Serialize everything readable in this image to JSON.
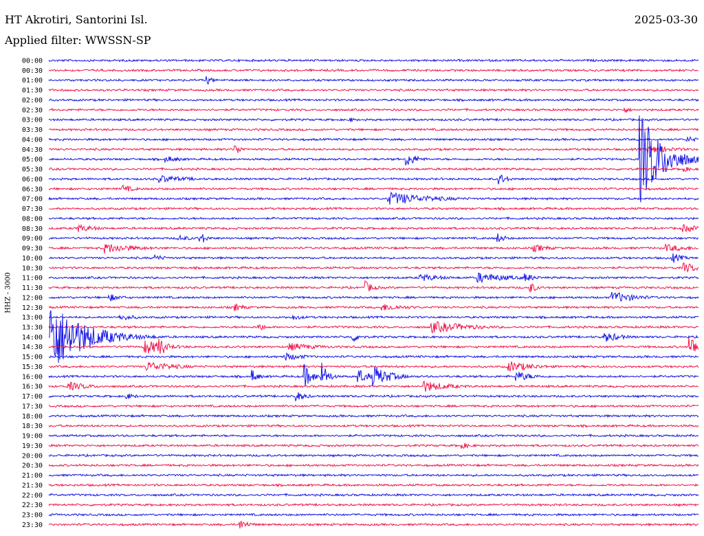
{
  "station": "HT Akrotiri, Santorini Isl.",
  "date": "2025-03-30",
  "filter_label": "Applied filter: WWSSN-SP",
  "channel_label": "HHZ - 3000",
  "colors": {
    "blue": "#1414e6",
    "red": "#f0144b",
    "text": "#000000"
  },
  "chart_data": {
    "type": "line",
    "title": "HT Akrotiri, Santorini Isl.",
    "subtitle": "Applied filter: WWSSN-SP",
    "ylabel": "HHZ - 3000",
    "tick_labels": [
      "00:00",
      "00:30",
      "01:00",
      "01:30",
      "02:00",
      "02:30",
      "03:00",
      "03:30",
      "04:00",
      "04:30",
      "05:00",
      "05:30",
      "06:00",
      "06:30",
      "07:00",
      "07:30",
      "08:00",
      "08:30",
      "09:00",
      "09:30",
      "10:00",
      "10:30",
      "11:00",
      "11:30",
      "12:00",
      "12:30",
      "13:00",
      "13:30",
      "14:00",
      "14:30",
      "15:00",
      "15:30",
      "16:00",
      "16:30",
      "17:00",
      "17:30",
      "18:00",
      "18:30",
      "19:00",
      "19:30",
      "20:00",
      "20:30",
      "21:00",
      "21:30",
      "22:00",
      "22:30",
      "23:00",
      "23:30"
    ],
    "series_colors": [
      "blue",
      "red"
    ],
    "x_range_minutes": [
      0,
      30
    ],
    "events": [
      {
        "row": 2,
        "t": 7.3,
        "amp": 7,
        "dur": 0.3
      },
      {
        "row": 5,
        "t": 26.6,
        "amp": 5,
        "dur": 0.3
      },
      {
        "row": 6,
        "t": 13.9,
        "amp": 4,
        "dur": 0.3
      },
      {
        "row": 8,
        "t": 29.5,
        "amp": 5,
        "dur": 0.5
      },
      {
        "row": 9,
        "t": 8.6,
        "amp": 9,
        "dur": 0.3
      },
      {
        "row": 9,
        "t": 27.7,
        "amp": 6,
        "dur": 1.4
      },
      {
        "row": 10,
        "t": 5.4,
        "amp": 5,
        "dur": 0.8
      },
      {
        "row": 10,
        "t": 16.5,
        "amp": 12,
        "dur": 0.5
      },
      {
        "row": 10,
        "t": 27.3,
        "amp": 70,
        "dur": 1.0
      },
      {
        "row": 11,
        "t": 29.2,
        "amp": 5,
        "dur": 0.5
      },
      {
        "row": 12,
        "t": 5.1,
        "amp": 6,
        "dur": 1.5
      },
      {
        "row": 12,
        "t": 20.8,
        "amp": 9,
        "dur": 0.4
      },
      {
        "row": 13,
        "t": 3.4,
        "amp": 6,
        "dur": 0.6
      },
      {
        "row": 14,
        "t": 15.7,
        "amp": 10,
        "dur": 2.0
      },
      {
        "row": 17,
        "t": 1.3,
        "amp": 6,
        "dur": 1.0
      },
      {
        "row": 17,
        "t": 29.3,
        "amp": 6,
        "dur": 1.0
      },
      {
        "row": 18,
        "t": 6.0,
        "amp": 5,
        "dur": 0.6
      },
      {
        "row": 18,
        "t": 7.0,
        "amp": 10,
        "dur": 0.3
      },
      {
        "row": 18,
        "t": 20.7,
        "amp": 8,
        "dur": 0.4
      },
      {
        "row": 19,
        "t": 2.6,
        "amp": 8,
        "dur": 1.5
      },
      {
        "row": 19,
        "t": 22.4,
        "amp": 6,
        "dur": 0.8
      },
      {
        "row": 19,
        "t": 28.5,
        "amp": 6,
        "dur": 1.2
      },
      {
        "row": 20,
        "t": 4.9,
        "amp": 5,
        "dur": 0.6
      },
      {
        "row": 20,
        "t": 28.8,
        "amp": 8,
        "dur": 0.5
      },
      {
        "row": 21,
        "t": 29.3,
        "amp": 8,
        "dur": 0.8
      },
      {
        "row": 22,
        "t": 17.1,
        "amp": 6,
        "dur": 1.2
      },
      {
        "row": 22,
        "t": 19.8,
        "amp": 8,
        "dur": 1.5
      },
      {
        "row": 22,
        "t": 22.0,
        "amp": 7,
        "dur": 0.5
      },
      {
        "row": 23,
        "t": 14.6,
        "amp": 10,
        "dur": 0.4
      },
      {
        "row": 23,
        "t": 22.2,
        "amp": 10,
        "dur": 0.3
      },
      {
        "row": 24,
        "t": 2.8,
        "amp": 6,
        "dur": 0.6
      },
      {
        "row": 24,
        "t": 26.0,
        "amp": 9,
        "dur": 1.2
      },
      {
        "row": 25,
        "t": 8.6,
        "amp": 6,
        "dur": 0.5
      },
      {
        "row": 25,
        "t": 15.4,
        "amp": 6,
        "dur": 1.2
      },
      {
        "row": 26,
        "t": 3.3,
        "amp": 5,
        "dur": 0.9
      },
      {
        "row": 26,
        "t": 11.2,
        "amp": 5,
        "dur": 0.6
      },
      {
        "row": 27,
        "t": 17.7,
        "amp": 9,
        "dur": 1.8
      },
      {
        "row": 27,
        "t": 9.7,
        "amp": 7,
        "dur": 0.3
      },
      {
        "row": 28,
        "t": 0.1,
        "amp": 55,
        "dur": 1.5
      },
      {
        "row": 28,
        "t": 14.0,
        "amp": 9,
        "dur": 0.4
      },
      {
        "row": 28,
        "t": 25.7,
        "amp": 8,
        "dur": 0.8
      },
      {
        "row": 29,
        "t": 4.4,
        "amp": 12,
        "dur": 1.0
      },
      {
        "row": 29,
        "t": 5.1,
        "amp": 18,
        "dur": 0.3
      },
      {
        "row": 29,
        "t": 11.1,
        "amp": 6,
        "dur": 1.5
      },
      {
        "row": 29,
        "t": 29.6,
        "amp": 15,
        "dur": 1.0
      },
      {
        "row": 30,
        "t": 10.9,
        "amp": 6,
        "dur": 1.0
      },
      {
        "row": 31,
        "t": 4.5,
        "amp": 8,
        "dur": 1.5
      },
      {
        "row": 31,
        "t": 21.2,
        "amp": 9,
        "dur": 1.2
      },
      {
        "row": 32,
        "t": 9.4,
        "amp": 10,
        "dur": 0.3
      },
      {
        "row": 32,
        "t": 11.8,
        "amp": 18,
        "dur": 0.4
      },
      {
        "row": 32,
        "t": 12.6,
        "amp": 22,
        "dur": 0.3
      },
      {
        "row": 32,
        "t": 14.3,
        "amp": 12,
        "dur": 0.5
      },
      {
        "row": 32,
        "t": 15.0,
        "amp": 16,
        "dur": 0.8
      },
      {
        "row": 32,
        "t": 21.6,
        "amp": 8,
        "dur": 0.8
      },
      {
        "row": 33,
        "t": 0.9,
        "amp": 7,
        "dur": 1.0
      },
      {
        "row": 33,
        "t": 17.3,
        "amp": 9,
        "dur": 1.2
      },
      {
        "row": 34,
        "t": 3.6,
        "amp": 5,
        "dur": 0.5
      },
      {
        "row": 34,
        "t": 11.4,
        "amp": 8,
        "dur": 0.5
      },
      {
        "row": 39,
        "t": 19.0,
        "amp": 5,
        "dur": 0.6
      },
      {
        "row": 47,
        "t": 8.8,
        "amp": 8,
        "dur": 0.5
      }
    ]
  }
}
